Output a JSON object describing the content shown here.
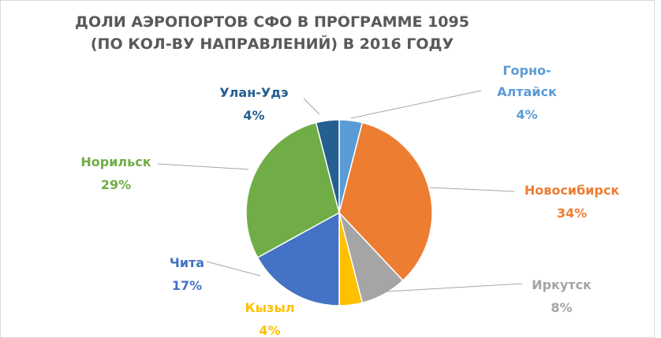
{
  "chart_data": {
    "type": "pie",
    "title": [
      "ДОЛИ АЭРОПОРТОВ СФО В ПРОГРАММЕ 1095",
      "(ПО КОЛ-ВУ НАПРАВЛЕНИЙ) В 2016 ГОДУ"
    ],
    "categories": [
      "Горно-Алтайск",
      "Новосибирск",
      "Иркутск",
      "Кызыл",
      "Чита",
      "Норильск",
      "Улан-Удэ"
    ],
    "values": [
      4,
      34,
      8,
      4,
      17,
      29,
      4
    ],
    "value_labels": [
      "4%",
      "34%",
      "8%",
      "4%",
      "17%",
      "29%",
      "4%"
    ],
    "colors": [
      "#5b9bd5",
      "#ed7d31",
      "#a5a5a5",
      "#ffc000",
      "#4472c4",
      "#70ad47",
      "#255e91"
    ]
  }
}
